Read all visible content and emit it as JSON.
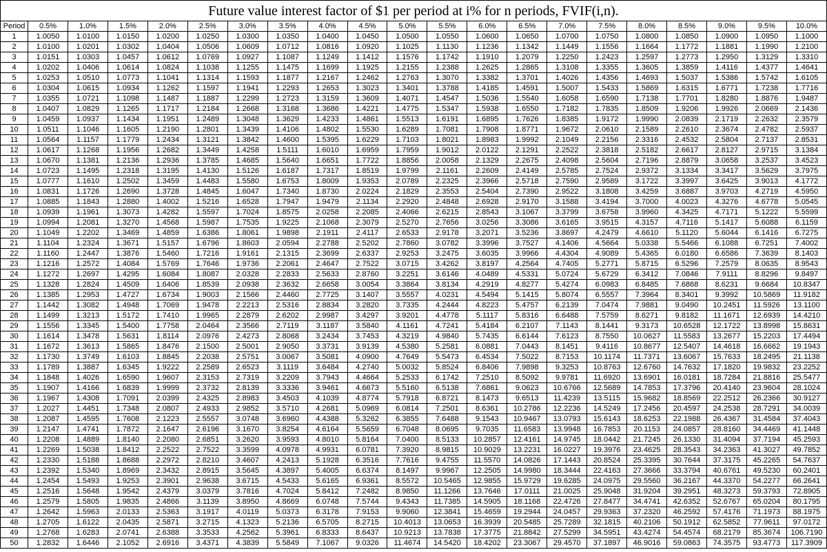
{
  "title": "Future value interest factor of $1 per period at i% for n periods, FVIF(i,n).",
  "period_label": "Period",
  "rates": [
    "0.5%",
    "1.0%",
    "1.5%",
    "2.0%",
    "2.5%",
    "3.0%",
    "3.5%",
    "4.0%",
    "4.5%",
    "5.0%",
    "5.5%",
    "6.0%",
    "6.5%",
    "7.0%",
    "7.5%",
    "8.0%",
    "8.5%",
    "9.0%",
    "9.5%",
    "10.0%"
  ],
  "periods": [
    1,
    2,
    3,
    4,
    5,
    6,
    7,
    8,
    9,
    10,
    11,
    12,
    13,
    14,
    15,
    16,
    17,
    18,
    19,
    20,
    21,
    22,
    23,
    24,
    25,
    26,
    27,
    28,
    29,
    30,
    31,
    32,
    33,
    34,
    35,
    36,
    37,
    38,
    39,
    40,
    41,
    42,
    43,
    44,
    45,
    46,
    47,
    48,
    49,
    50
  ],
  "rows": [
    [
      "1.0050",
      "1.0100",
      "1.0150",
      "1.0200",
      "1.0250",
      "1.0300",
      "1.0350",
      "1.0400",
      "1.0450",
      "1.0500",
      "1.0550",
      "1.0600",
      "1.0650",
      "1.0700",
      "1.0750",
      "1.0800",
      "1.0850",
      "1.0900",
      "1.0950",
      "1.1000"
    ],
    [
      "1.0100",
      "1.0201",
      "1.0302",
      "1.0404",
      "1.0506",
      "1.0609",
      "1.0712",
      "1.0816",
      "1.0920",
      "1.1025",
      "1.1130",
      "1.1236",
      "1.1342",
      "1.1449",
      "1.1556",
      "1.1664",
      "1.1772",
      "1.1881",
      "1.1990",
      "1.2100"
    ],
    [
      "1.0151",
      "1.0303",
      "1.0457",
      "1.0612",
      "1.0769",
      "1.0927",
      "1.1087",
      "1.1249",
      "1.1412",
      "1.1576",
      "1.1742",
      "1.1910",
      "1.2079",
      "1.2250",
      "1.2423",
      "1.2597",
      "1.2773",
      "1.2950",
      "1.3129",
      "1.3310"
    ],
    [
      "1.0202",
      "1.0406",
      "1.0614",
      "1.0824",
      "1.1038",
      "1.1255",
      "1.1475",
      "1.1699",
      "1.1925",
      "1.2155",
      "1.2388",
      "1.2625",
      "1.2865",
      "1.3108",
      "1.3355",
      "1.3605",
      "1.3859",
      "1.4116",
      "1.4377",
      "1.4641"
    ],
    [
      "1.0253",
      "1.0510",
      "1.0773",
      "1.1041",
      "1.1314",
      "1.1593",
      "1.1877",
      "1.2167",
      "1.2462",
      "1.2763",
      "1.3070",
      "1.3382",
      "1.3701",
      "1.4026",
      "1.4356",
      "1.4693",
      "1.5037",
      "1.5386",
      "1.5742",
      "1.6105"
    ],
    [
      "1.0304",
      "1.0615",
      "1.0934",
      "1.1262",
      "1.1597",
      "1.1941",
      "1.2293",
      "1.2653",
      "1.3023",
      "1.3401",
      "1.3788",
      "1.4185",
      "1.4591",
      "1.5007",
      "1.5433",
      "1.5869",
      "1.6315",
      "1.6771",
      "1.7238",
      "1.7716"
    ],
    [
      "1.0355",
      "1.0721",
      "1.1098",
      "1.1487",
      "1.1887",
      "1.2299",
      "1.2723",
      "1.3159",
      "1.3609",
      "1.4071",
      "1.4547",
      "1.5036",
      "1.5540",
      "1.6058",
      "1.6590",
      "1.7138",
      "1.7701",
      "1.8280",
      "1.8876",
      "1.9487"
    ],
    [
      "1.0407",
      "1.0829",
      "1.1265",
      "1.1717",
      "1.2184",
      "1.2668",
      "1.3168",
      "1.3686",
      "1.4221",
      "1.4775",
      "1.5347",
      "1.5938",
      "1.6550",
      "1.7182",
      "1.7835",
      "1.8509",
      "1.9206",
      "1.9926",
      "2.0669",
      "2.1436"
    ],
    [
      "1.0459",
      "1.0937",
      "1.1434",
      "1.1951",
      "1.2489",
      "1.3048",
      "1.3629",
      "1.4233",
      "1.4861",
      "1.5513",
      "1.6191",
      "1.6895",
      "1.7626",
      "1.8385",
      "1.9172",
      "1.9990",
      "2.0839",
      "2.1719",
      "2.2632",
      "2.3579"
    ],
    [
      "1.0511",
      "1.1046",
      "1.1605",
      "1.2190",
      "1.2801",
      "1.3439",
      "1.4106",
      "1.4802",
      "1.5530",
      "1.6289",
      "1.7081",
      "1.7908",
      "1.8771",
      "1.9672",
      "2.0610",
      "2.1589",
      "2.2610",
      "2.3674",
      "2.4782",
      "2.5937"
    ],
    [
      "1.0564",
      "1.1157",
      "1.1779",
      "1.2434",
      "1.3121",
      "1.3842",
      "1.4600",
      "1.5395",
      "1.6229",
      "1.7103",
      "1.8021",
      "1.8983",
      "1.9992",
      "2.1049",
      "2.2156",
      "2.3316",
      "2.4532",
      "2.5804",
      "2.7137",
      "2.8531"
    ],
    [
      "1.0617",
      "1.1268",
      "1.1956",
      "1.2682",
      "1.3449",
      "1.4258",
      "1.5111",
      "1.6010",
      "1.6959",
      "1.7959",
      "1.9012",
      "2.0122",
      "2.1291",
      "2.2522",
      "2.3818",
      "2.5182",
      "2.6617",
      "2.8127",
      "2.9715",
      "3.1384"
    ],
    [
      "1.0670",
      "1.1381",
      "1.2136",
      "1.2936",
      "1.3785",
      "1.4685",
      "1.5640",
      "1.6651",
      "1.7722",
      "1.8856",
      "2.0058",
      "2.1329",
      "2.2675",
      "2.4098",
      "2.5604",
      "2.7196",
      "2.8879",
      "3.0658",
      "3.2537",
      "3.4523"
    ],
    [
      "1.0723",
      "1.1495",
      "1.2318",
      "1.3195",
      "1.4130",
      "1.5126",
      "1.6187",
      "1.7317",
      "1.8519",
      "1.9799",
      "2.1161",
      "2.2609",
      "2.4149",
      "2.5785",
      "2.7524",
      "2.9372",
      "3.1334",
      "3.3417",
      "3.5629",
      "3.7975"
    ],
    [
      "1.0777",
      "1.1610",
      "1.2502",
      "1.3459",
      "1.4483",
      "1.5580",
      "1.6753",
      "1.8009",
      "1.9353",
      "2.0789",
      "2.2325",
      "2.3966",
      "2.5718",
      "2.7590",
      "2.9589",
      "3.1722",
      "3.3997",
      "3.6425",
      "3.9013",
      "4.1772"
    ],
    [
      "1.0831",
      "1.1726",
      "1.2690",
      "1.3728",
      "1.4845",
      "1.6047",
      "1.7340",
      "1.8730",
      "2.0224",
      "2.1829",
      "2.3553",
      "2.5404",
      "2.7390",
      "2.9522",
      "3.1808",
      "3.4259",
      "3.6887",
      "3.9703",
      "4.2719",
      "4.5950"
    ],
    [
      "1.0885",
      "1.1843",
      "1.2880",
      "1.4002",
      "1.5216",
      "1.6528",
      "1.7947",
      "1.9479",
      "2.1134",
      "2.2920",
      "2.4848",
      "2.6928",
      "2.9170",
      "3.1588",
      "3.4194",
      "3.7000",
      "4.0023",
      "4.3276",
      "4.6778",
      "5.0545"
    ],
    [
      "1.0939",
      "1.1961",
      "1.3073",
      "1.4282",
      "1.5597",
      "1.7024",
      "1.8575",
      "2.0258",
      "2.2085",
      "2.4066",
      "2.6215",
      "2.8543",
      "3.1067",
      "3.3799",
      "3.6758",
      "3.9960",
      "4.3425",
      "4.7171",
      "5.1222",
      "5.5599"
    ],
    [
      "1.0994",
      "1.2081",
      "1.3270",
      "1.4568",
      "1.5987",
      "1.7535",
      "1.9225",
      "2.1068",
      "2.3079",
      "2.5270",
      "2.7656",
      "3.0256",
      "3.3086",
      "3.6165",
      "3.9515",
      "4.3157",
      "4.7116",
      "5.1417",
      "5.6088",
      "6.1159"
    ],
    [
      "1.1049",
      "1.2202",
      "1.3469",
      "1.4859",
      "1.6386",
      "1.8061",
      "1.9898",
      "2.1911",
      "2.4117",
      "2.6533",
      "2.9178",
      "3.2071",
      "3.5236",
      "3.8697",
      "4.2479",
      "4.6610",
      "5.1120",
      "5.6044",
      "6.1416",
      "6.7275"
    ],
    [
      "1.1104",
      "1.2324",
      "1.3671",
      "1.5157",
      "1.6796",
      "1.8603",
      "2.0594",
      "2.2788",
      "2.5202",
      "2.7860",
      "3.0782",
      "3.3996",
      "3.7527",
      "4.1406",
      "4.5664",
      "5.0338",
      "5.5466",
      "6.1088",
      "6.7251",
      "7.4002"
    ],
    [
      "1.1160",
      "1.2447",
      "1.3876",
      "1.5460",
      "1.7216",
      "1.9161",
      "2.1315",
      "2.3699",
      "2.6337",
      "2.9253",
      "3.2475",
      "3.6035",
      "3.9966",
      "4.4304",
      "4.9089",
      "5.4365",
      "6.0180",
      "6.6586",
      "7.3639",
      "8.1403"
    ],
    [
      "1.1216",
      "1.2572",
      "1.4084",
      "1.5769",
      "1.7646",
      "1.9736",
      "2.2061",
      "2.4647",
      "2.7522",
      "3.0715",
      "3.4262",
      "3.8197",
      "4.2564",
      "4.7405",
      "5.2771",
      "5.8715",
      "6.5296",
      "7.2579",
      "8.0635",
      "8.9543"
    ],
    [
      "1.1272",
      "1.2697",
      "1.4295",
      "1.6084",
      "1.8087",
      "2.0328",
      "2.2833",
      "2.5633",
      "2.8760",
      "3.2251",
      "3.6146",
      "4.0489",
      "4.5331",
      "5.0724",
      "5.6729",
      "6.3412",
      "7.0846",
      "7.9111",
      "8.8296",
      "9.8497"
    ],
    [
      "1.1328",
      "1.2824",
      "1.4509",
      "1.6406",
      "1.8539",
      "2.0938",
      "2.3632",
      "2.6658",
      "3.0054",
      "3.3864",
      "3.8134",
      "4.2919",
      "4.8277",
      "5.4274",
      "6.0983",
      "6.8485",
      "7.6868",
      "8.6231",
      "9.6684",
      "10.8347"
    ],
    [
      "1.1385",
      "1.2953",
      "1.4727",
      "1.6734",
      "1.9003",
      "2.1566",
      "2.4460",
      "2.7725",
      "3.1407",
      "3.5557",
      "4.0231",
      "4.5494",
      "5.1415",
      "5.8074",
      "6.5557",
      "7.3964",
      "8.3401",
      "9.3992",
      "10.5869",
      "11.9182"
    ],
    [
      "1.1442",
      "1.3082",
      "1.4948",
      "1.7069",
      "1.9478",
      "2.2213",
      "2.5316",
      "2.8834",
      "3.2820",
      "3.7335",
      "4.2444",
      "4.8223",
      "5.4757",
      "6.2139",
      "7.0474",
      "7.9881",
      "9.0490",
      "10.2451",
      "11.5926",
      "13.1100"
    ],
    [
      "1.1499",
      "1.3213",
      "1.5172",
      "1.7410",
      "1.9965",
      "2.2879",
      "2.6202",
      "2.9987",
      "3.4297",
      "3.9201",
      "4.4778",
      "5.1117",
      "5.8316",
      "6.6488",
      "7.5759",
      "8.6271",
      "9.8182",
      "11.1671",
      "12.6939",
      "14.4210"
    ],
    [
      "1.1556",
      "1.3345",
      "1.5400",
      "1.7758",
      "2.0464",
      "2.3566",
      "2.7119",
      "3.1187",
      "3.5840",
      "4.1161",
      "4.7241",
      "5.4184",
      "6.2107",
      "7.1143",
      "8.1441",
      "9.3173",
      "10.6528",
      "12.1722",
      "13.8998",
      "15.8631"
    ],
    [
      "1.1614",
      "1.3478",
      "1.5631",
      "1.8114",
      "2.0976",
      "2.4273",
      "2.8068",
      "3.2434",
      "3.7453",
      "4.3219",
      "4.9840",
      "5.7435",
      "6.6144",
      "7.6123",
      "8.7550",
      "10.0627",
      "11.5583",
      "13.2677",
      "15.2203",
      "17.4494"
    ],
    [
      "1.1672",
      "1.3613",
      "1.5865",
      "1.8476",
      "2.1500",
      "2.5001",
      "2.9050",
      "3.3731",
      "3.9139",
      "4.5380",
      "5.2581",
      "6.0881",
      "7.0443",
      "8.1451",
      "9.4116",
      "10.8677",
      "12.5407",
      "14.4618",
      "16.6662",
      "19.1943"
    ],
    [
      "1.1730",
      "1.3749",
      "1.6103",
      "1.8845",
      "2.2038",
      "2.5751",
      "3.0067",
      "3.5081",
      "4.0900",
      "4.7649",
      "5.5473",
      "6.4534",
      "7.5022",
      "8.7153",
      "10.1174",
      "11.7371",
      "13.6067",
      "15.7633",
      "18.2495",
      "21.1138"
    ],
    [
      "1.1789",
      "1.3887",
      "1.6345",
      "1.9222",
      "2.2589",
      "2.6523",
      "3.1119",
      "3.6484",
      "4.2740",
      "5.0032",
      "5.8524",
      "6.8406",
      "7.9898",
      "9.3253",
      "10.8763",
      "12.6760",
      "14.7632",
      "17.1820",
      "19.9832",
      "23.2252"
    ],
    [
      "1.1848",
      "1.4026",
      "1.6590",
      "1.9607",
      "2.3153",
      "2.7319",
      "3.2209",
      "3.7943",
      "4.4664",
      "5.2533",
      "6.1742",
      "7.2510",
      "8.5092",
      "9.9781",
      "11.6920",
      "13.6901",
      "16.0181",
      "18.7284",
      "21.8816",
      "25.5477"
    ],
    [
      "1.1907",
      "1.4166",
      "1.6839",
      "1.9999",
      "2.3732",
      "2.8139",
      "3.3336",
      "3.9461",
      "4.6673",
      "5.5160",
      "6.5138",
      "7.6861",
      "9.0623",
      "10.6766",
      "12.5689",
      "14.7853",
      "17.3796",
      "20.4140",
      "23.9604",
      "28.1024"
    ],
    [
      "1.1967",
      "1.4308",
      "1.7091",
      "2.0399",
      "2.4325",
      "2.8983",
      "3.4503",
      "4.1039",
      "4.8774",
      "5.7918",
      "6.8721",
      "8.1473",
      "9.6513",
      "11.4239",
      "13.5115",
      "15.9682",
      "18.8569",
      "22.2512",
      "26.2366",
      "30.9127"
    ],
    [
      "1.2027",
      "1.4451",
      "1.7348",
      "2.0807",
      "2.4933",
      "2.9852",
      "3.5710",
      "4.2681",
      "5.0969",
      "6.0814",
      "7.2501",
      "8.6361",
      "10.2786",
      "12.2236",
      "14.5249",
      "17.2456",
      "20.4597",
      "24.2538",
      "28.7291",
      "34.0039"
    ],
    [
      "1.2087",
      "1.4595",
      "1.7608",
      "2.1223",
      "2.5557",
      "3.0748",
      "3.6960",
      "4.4388",
      "5.3262",
      "6.3855",
      "7.6488",
      "9.1543",
      "10.9467",
      "13.0793",
      "15.6143",
      "18.6253",
      "22.1988",
      "26.4367",
      "31.4584",
      "37.4043"
    ],
    [
      "1.2147",
      "1.4741",
      "1.7872",
      "2.1647",
      "2.6196",
      "3.1670",
      "3.8254",
      "4.6164",
      "5.5659",
      "6.7048",
      "8.0695",
      "9.7035",
      "11.6583",
      "13.9948",
      "16.7853",
      "20.1153",
      "24.0857",
      "28.8160",
      "34.4469",
      "41.1448"
    ],
    [
      "1.2208",
      "1.4889",
      "1.8140",
      "2.2080",
      "2.6851",
      "3.2620",
      "3.9593",
      "4.8010",
      "5.8164",
      "7.0400",
      "8.5133",
      "10.2857",
      "12.4161",
      "14.9745",
      "18.0442",
      "21.7245",
      "26.1330",
      "31.4094",
      "37.7194",
      "45.2593"
    ],
    [
      "1.2269",
      "1.5038",
      "1.8412",
      "2.2522",
      "2.7522",
      "3.3599",
      "4.0978",
      "4.9931",
      "6.0781",
      "7.3920",
      "8.9815",
      "10.9029",
      "13.2231",
      "16.0227",
      "19.3976",
      "23.4625",
      "28.3543",
      "34.2363",
      "41.3027",
      "49.7852"
    ],
    [
      "1.2330",
      "1.5188",
      "1.8688",
      "2.2972",
      "2.8210",
      "3.4607",
      "4.2413",
      "5.1928",
      "6.3516",
      "7.7616",
      "9.4755",
      "11.5570",
      "14.0826",
      "17.1443",
      "20.8524",
      "25.3395",
      "30.7644",
      "37.3175",
      "45.2265",
      "54.7637"
    ],
    [
      "1.2392",
      "1.5340",
      "1.8969",
      "2.3432",
      "2.8915",
      "3.5645",
      "4.3897",
      "5.4005",
      "6.6374",
      "8.1497",
      "9.9967",
      "12.2505",
      "14.9980",
      "18.3444",
      "22.4163",
      "27.3666",
      "33.3794",
      "40.6761",
      "49.5230",
      "60.2401"
    ],
    [
      "1.2454",
      "1.5493",
      "1.9253",
      "2.3901",
      "2.9638",
      "3.6715",
      "4.5433",
      "5.6165",
      "6.9361",
      "8.5572",
      "10.5465",
      "12.9855",
      "15.9729",
      "19.6285",
      "24.0975",
      "29.5560",
      "36.2167",
      "44.3370",
      "54.2277",
      "66.2641"
    ],
    [
      "1.2516",
      "1.5648",
      "1.9542",
      "2.4379",
      "3.0379",
      "3.7816",
      "4.7024",
      "5.8412",
      "7.2482",
      "8.9850",
      "11.1266",
      "13.7646",
      "17.0111",
      "21.0025",
      "25.9048",
      "31.9204",
      "39.2951",
      "48.3273",
      "59.3793",
      "72.8905"
    ],
    [
      "1.2579",
      "1.5805",
      "1.9835",
      "2.4866",
      "3.1139",
      "3.8950",
      "4.8669",
      "6.0748",
      "7.5744",
      "9.4343",
      "11.7385",
      "14.5905",
      "18.1168",
      "22.4726",
      "27.8477",
      "34.4741",
      "42.6352",
      "52.6767",
      "65.0204",
      "80.1795"
    ],
    [
      "1.2642",
      "1.5963",
      "2.0133",
      "2.5363",
      "3.1917",
      "4.0119",
      "5.0373",
      "6.3178",
      "7.9153",
      "9.9060",
      "12.3841",
      "15.4659",
      "19.2944",
      "24.0457",
      "29.9363",
      "37.2320",
      "46.2592",
      "57.4176",
      "71.1973",
      "88.1975"
    ],
    [
      "1.2705",
      "1.6122",
      "2.0435",
      "2.5871",
      "3.2715",
      "4.1323",
      "5.2136",
      "6.5705",
      "8.2715",
      "10.4013",
      "13.0653",
      "16.3939",
      "20.5485",
      "25.7289",
      "32.1815",
      "40.2106",
      "50.1912",
      "62.5852",
      "77.9611",
      "97.0172"
    ],
    [
      "1.2768",
      "1.6283",
      "2.0741",
      "2.6388",
      "3.3533",
      "4.2562",
      "5.3961",
      "6.8333",
      "8.6437",
      "10.9213",
      "13.7838",
      "17.3775",
      "21.8842",
      "27.5299",
      "34.5951",
      "43.4274",
      "54.4574",
      "68.2179",
      "85.3674",
      "106.7190"
    ],
    [
      "1.2832",
      "1.6446",
      "2.1052",
      "2.6916",
      "3.4371",
      "4.3839",
      "5.5849",
      "7.1067",
      "9.0326",
      "11.4674",
      "14.5420",
      "18.4202",
      "23.3067",
      "29.4570",
      "37.1897",
      "46.9016",
      "59.0863",
      "74.3575",
      "93.4773",
      "117.3909"
    ]
  ]
}
